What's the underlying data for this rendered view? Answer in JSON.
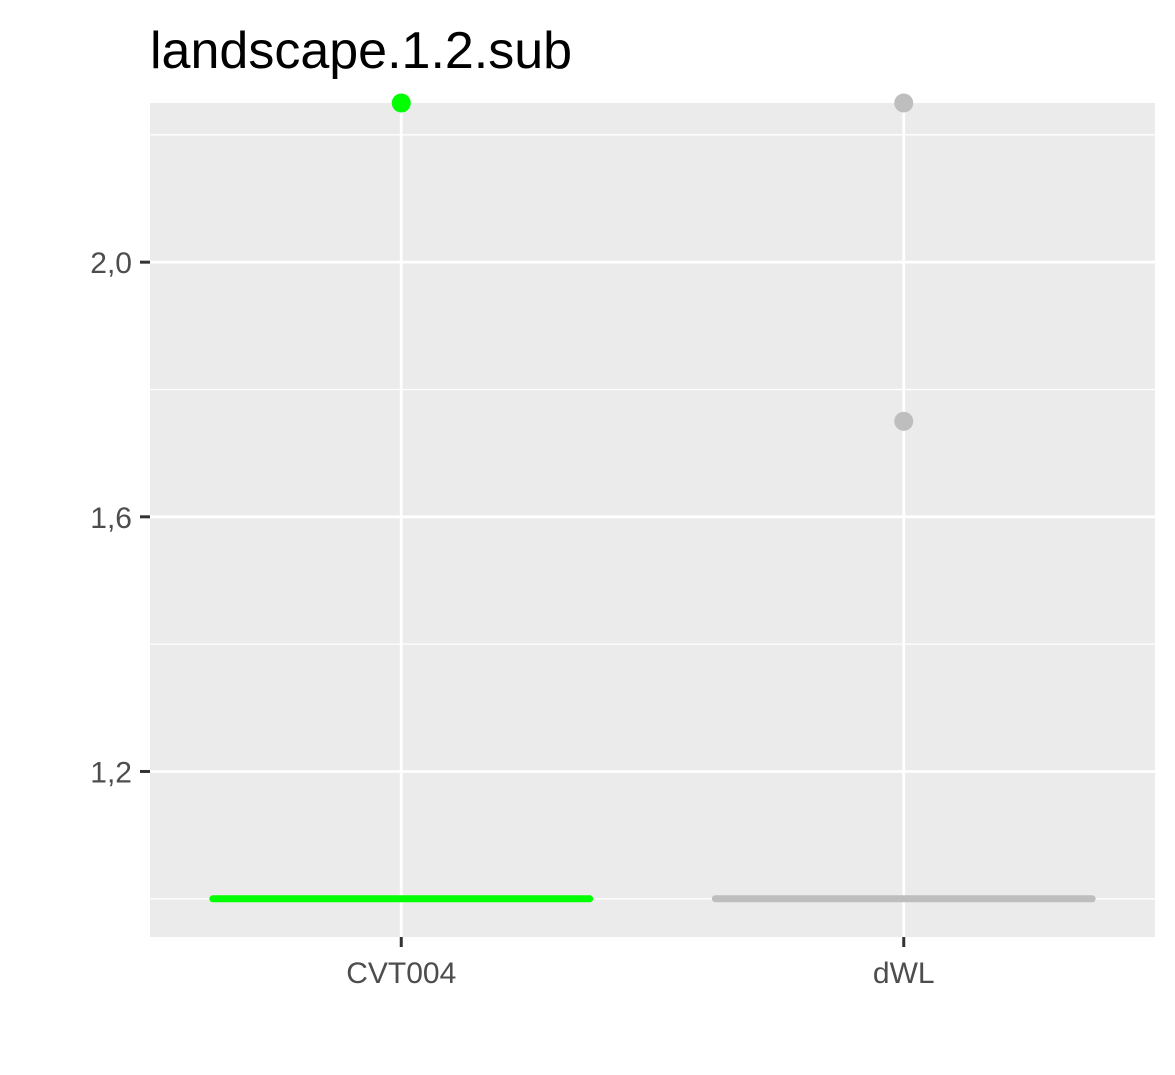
{
  "chart_data": {
    "type": "boxplot",
    "title": "landscape.1.2.sub",
    "xlabel": "",
    "ylabel": "",
    "categories": [
      "CVT004",
      "dWL"
    ],
    "ylim": [
      0.94,
      2.25
    ],
    "y_ticks": [
      1.2,
      1.6,
      2.0
    ],
    "y_tick_labels": [
      "1,2",
      "1,6",
      "2,0"
    ],
    "grid": true,
    "panel_background": "#ebebeb",
    "grid_color": "#ffffff",
    "series": [
      {
        "category": "CVT004",
        "color": "#00ff00",
        "box": {
          "min": 1.0,
          "q1": 1.0,
          "median": 1.0,
          "q3": 1.0,
          "max": 1.0
        },
        "outliers": [
          2.25
        ]
      },
      {
        "category": "dWL",
        "color": "#bebebe",
        "box": {
          "min": 1.0,
          "q1": 1.0,
          "median": 1.0,
          "q3": 1.0,
          "max": 1.0
        },
        "outliers": [
          2.25,
          1.75
        ]
      }
    ]
  }
}
